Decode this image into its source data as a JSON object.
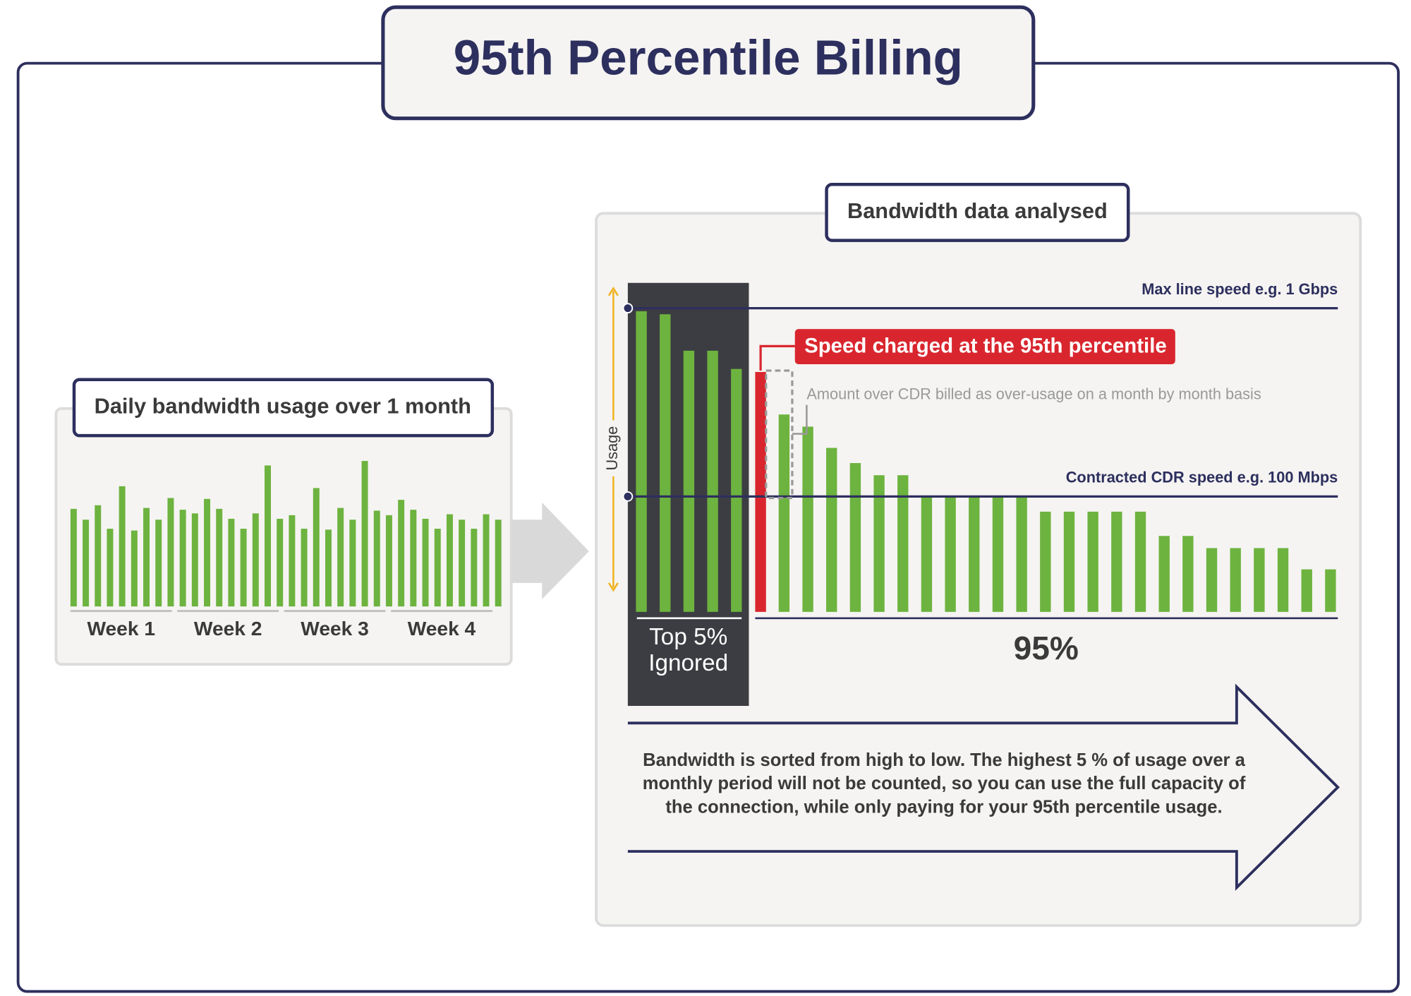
{
  "title": "95th Percentile Billing",
  "daily_panel": {
    "title": "Daily bandwidth usage over 1 month",
    "weeks": [
      "Week 1",
      "Week 2",
      "Week 3",
      "Week 4"
    ],
    "usage": [
      108,
      96,
      112,
      86,
      133,
      84,
      109,
      96,
      120,
      107,
      103,
      119,
      108,
      97,
      86,
      103,
      156,
      97,
      101,
      86,
      131,
      85,
      109,
      96,
      161,
      106,
      101,
      118,
      107,
      97,
      86,
      102,
      96,
      86,
      102,
      96
    ]
  },
  "analysis_panel": {
    "title": "Bandwidth data analysed",
    "max_line": {
      "label": "Max line speed e.g. 1 Gbps",
      "value": 100
    },
    "cdr_line": {
      "label": "Contracted CDR speed e.g. 100 Mbps",
      "value": 38
    },
    "axis_label": "Usage",
    "ignored_label": [
      "Top 5%",
      "Ignored"
    ],
    "percent_label": "95%",
    "charged_label": "Speed charged at the 95th percentile",
    "overage_note": "Amount over CDR billed as over-usage on a month by month basis",
    "sorted_usage_ignored": [
      99,
      98,
      86,
      86,
      80
    ],
    "charged_usage": 79,
    "sorted_usage_counted": [
      65,
      61,
      54,
      49,
      45,
      45,
      38,
      38,
      38,
      38,
      38,
      33,
      33,
      33,
      33,
      33,
      25,
      25,
      21,
      21,
      21,
      21,
      14,
      14
    ],
    "description": [
      "Bandwidth is sorted from high to low. The highest 5 % of usage over a",
      "monthly period will not be counted, so you can use the full capacity of",
      "the connection, while only paying for your 95th percentile usage."
    ]
  }
}
